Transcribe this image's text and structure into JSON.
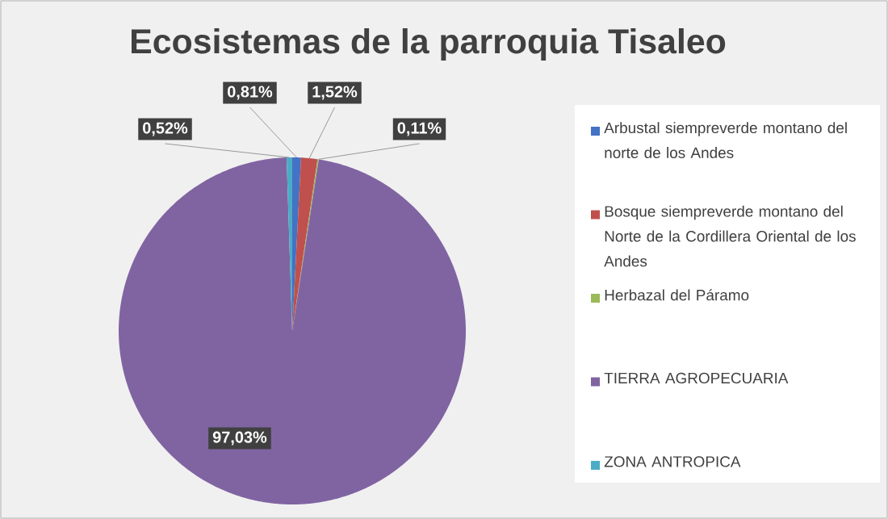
{
  "chart_data": {
    "type": "pie",
    "title": "Ecosistemas de la parroquia Tisaleo",
    "categories": [
      "Arbustal siempreverde montano del norte de los Andes",
      "Bosque siempreverde montano del Norte de la Cordillera Oriental de los Andes",
      "Herbazal del Páramo",
      "TIERRA AGROPECUARIA",
      "ZONA ANTROPICA"
    ],
    "values": [
      0.81,
      1.52,
      0.11,
      97.03,
      0.52
    ],
    "colors": [
      "#4472c4",
      "#c0504d",
      "#9bbb59",
      "#8064a2",
      "#4bacc6"
    ],
    "value_labels": [
      "0,81%",
      "1,52%",
      "0,11%",
      "97,03%",
      "0,52%"
    ],
    "legend": "right"
  }
}
